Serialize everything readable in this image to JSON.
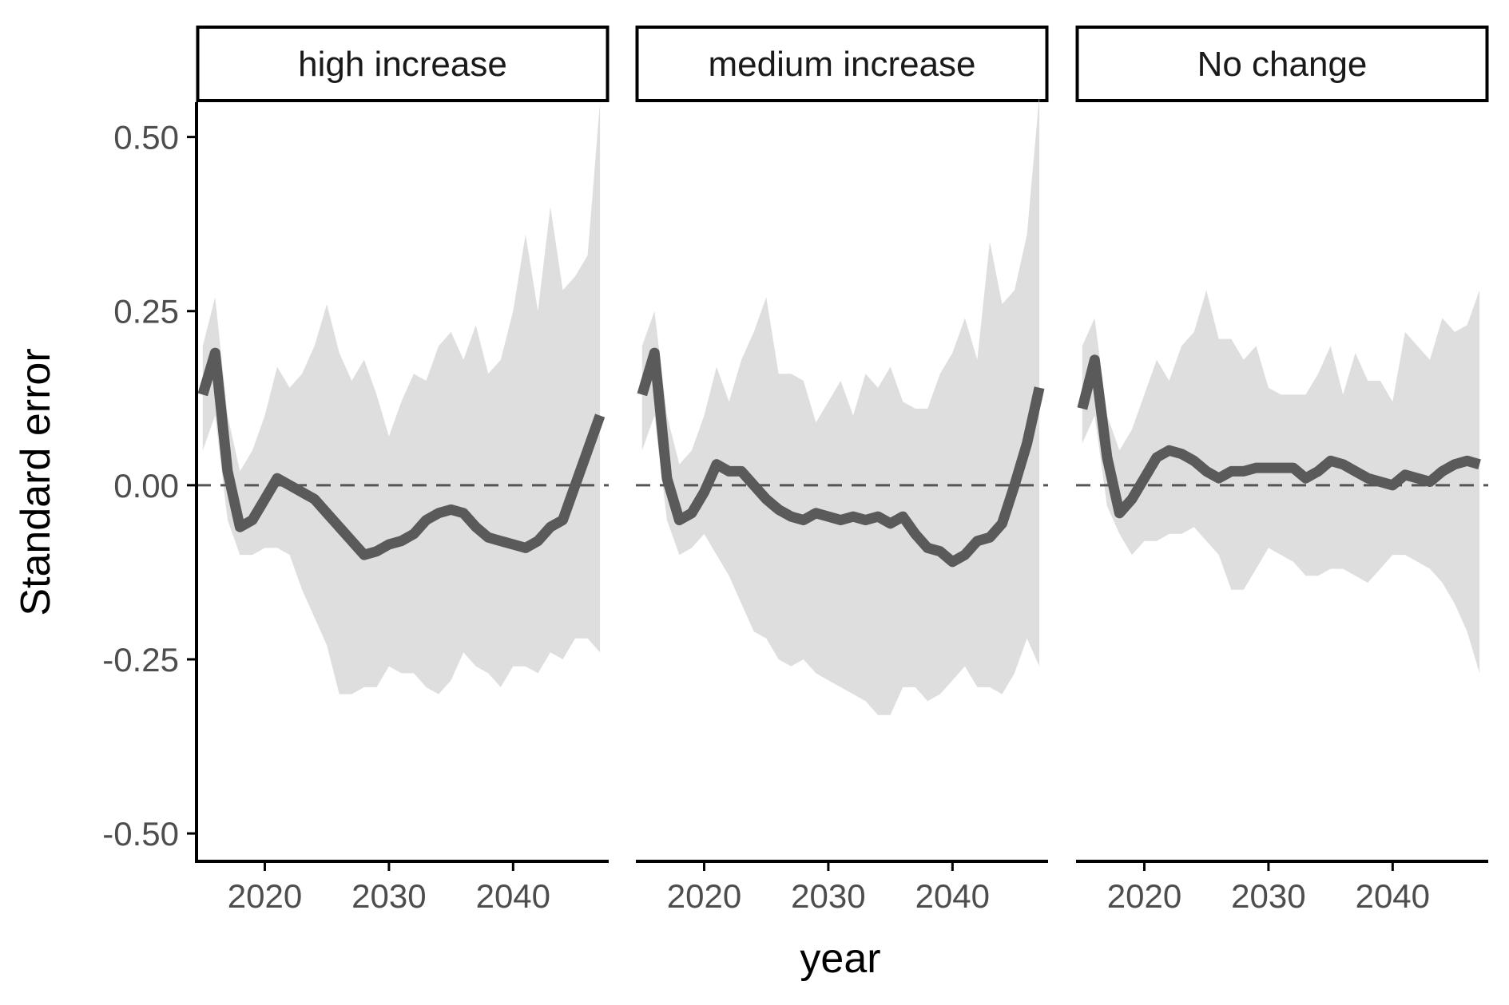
{
  "chart_data": {
    "type": "line",
    "xlabel": "year",
    "ylabel": "Standard error",
    "xlim": [
      2014.5,
      2047.7
    ],
    "ylim": [
      -0.54,
      0.55
    ],
    "x_ticks": [
      2020,
      2030,
      2040
    ],
    "x_tick_labels": [
      "2020",
      "2030",
      "2040"
    ],
    "y_ticks": [
      -0.5,
      -0.25,
      0,
      0.25,
      0.5
    ],
    "y_tick_labels": [
      "-0.50",
      "-0.25",
      "0.00",
      "0.25",
      "0.50"
    ],
    "reference_line": {
      "y": 0,
      "style": "dashed"
    },
    "grid": false,
    "colors": {
      "line": "#5a5a5a",
      "band": "#dedede",
      "axis": "#000000",
      "dashed": "#555555"
    },
    "panels": [
      {
        "label": "high increase",
        "x": [
          2015,
          2016,
          2017,
          2018,
          2019,
          2020,
          2021,
          2022,
          2023,
          2024,
          2025,
          2026,
          2027,
          2028,
          2029,
          2030,
          2031,
          2032,
          2033,
          2034,
          2035,
          2036,
          2037,
          2038,
          2039,
          2040,
          2041,
          2042,
          2043,
          2044,
          2045,
          2046,
          2047
        ],
        "mean": [
          0.13,
          0.19,
          0.02,
          -0.06,
          -0.05,
          -0.02,
          0.01,
          0.0,
          -0.01,
          -0.02,
          -0.04,
          -0.06,
          -0.08,
          -0.1,
          -0.095,
          -0.085,
          -0.08,
          -0.07,
          -0.05,
          -0.04,
          -0.035,
          -0.04,
          -0.06,
          -0.075,
          -0.08,
          -0.085,
          -0.09,
          -0.08,
          -0.06,
          -0.05,
          0.0,
          0.05,
          0.1
        ],
        "upper": [
          0.2,
          0.27,
          0.1,
          0.02,
          0.05,
          0.1,
          0.17,
          0.14,
          0.16,
          0.2,
          0.26,
          0.19,
          0.15,
          0.18,
          0.13,
          0.07,
          0.12,
          0.16,
          0.15,
          0.2,
          0.22,
          0.18,
          0.23,
          0.16,
          0.18,
          0.25,
          0.36,
          0.25,
          0.4,
          0.28,
          0.3,
          0.33,
          0.55
        ],
        "lower": [
          0.05,
          0.1,
          -0.05,
          -0.1,
          -0.1,
          -0.09,
          -0.09,
          -0.1,
          -0.15,
          -0.19,
          -0.23,
          -0.3,
          -0.3,
          -0.29,
          -0.29,
          -0.26,
          -0.27,
          -0.27,
          -0.29,
          -0.3,
          -0.28,
          -0.24,
          -0.26,
          -0.27,
          -0.29,
          -0.26,
          -0.26,
          -0.27,
          -0.24,
          -0.25,
          -0.22,
          -0.22,
          -0.24
        ]
      },
      {
        "label": "medium increase",
        "x": [
          2015,
          2016,
          2017,
          2018,
          2019,
          2020,
          2021,
          2022,
          2023,
          2024,
          2025,
          2026,
          2027,
          2028,
          2029,
          2030,
          2031,
          2032,
          2033,
          2034,
          2035,
          2036,
          2037,
          2038,
          2039,
          2040,
          2041,
          2042,
          2043,
          2044,
          2045,
          2046,
          2047
        ],
        "mean": [
          0.13,
          0.19,
          0.01,
          -0.05,
          -0.04,
          -0.01,
          0.03,
          0.02,
          0.02,
          0.0,
          -0.02,
          -0.035,
          -0.045,
          -0.05,
          -0.04,
          -0.045,
          -0.05,
          -0.045,
          -0.05,
          -0.045,
          -0.055,
          -0.045,
          -0.07,
          -0.09,
          -0.095,
          -0.11,
          -0.1,
          -0.08,
          -0.075,
          -0.055,
          0.0,
          0.06,
          0.14
        ],
        "upper": [
          0.2,
          0.25,
          0.1,
          0.03,
          0.05,
          0.1,
          0.17,
          0.12,
          0.18,
          0.22,
          0.27,
          0.16,
          0.16,
          0.15,
          0.09,
          0.12,
          0.15,
          0.1,
          0.16,
          0.14,
          0.17,
          0.12,
          0.11,
          0.11,
          0.16,
          0.19,
          0.24,
          0.18,
          0.35,
          0.26,
          0.28,
          0.36,
          0.56
        ],
        "lower": [
          0.05,
          0.1,
          -0.05,
          -0.1,
          -0.09,
          -0.07,
          -0.1,
          -0.13,
          -0.17,
          -0.21,
          -0.22,
          -0.25,
          -0.26,
          -0.25,
          -0.27,
          -0.28,
          -0.29,
          -0.3,
          -0.31,
          -0.33,
          -0.33,
          -0.29,
          -0.29,
          -0.31,
          -0.3,
          -0.28,
          -0.26,
          -0.29,
          -0.29,
          -0.3,
          -0.27,
          -0.22,
          -0.26
        ]
      },
      {
        "label": "No change",
        "x": [
          2015,
          2016,
          2017,
          2018,
          2019,
          2020,
          2021,
          2022,
          2023,
          2024,
          2025,
          2026,
          2027,
          2028,
          2029,
          2030,
          2031,
          2032,
          2033,
          2034,
          2035,
          2036,
          2037,
          2038,
          2039,
          2040,
          2041,
          2042,
          2043,
          2044,
          2045,
          2046,
          2047
        ],
        "mean": [
          0.11,
          0.18,
          0.04,
          -0.04,
          -0.02,
          0.01,
          0.04,
          0.05,
          0.045,
          0.035,
          0.02,
          0.01,
          0.02,
          0.02,
          0.025,
          0.025,
          0.025,
          0.025,
          0.01,
          0.02,
          0.035,
          0.03,
          0.02,
          0.01,
          0.005,
          0.0,
          0.015,
          0.01,
          0.005,
          0.02,
          0.03,
          0.035,
          0.03
        ],
        "upper": [
          0.2,
          0.24,
          0.1,
          0.05,
          0.08,
          0.13,
          0.18,
          0.15,
          0.2,
          0.22,
          0.28,
          0.21,
          0.21,
          0.18,
          0.2,
          0.14,
          0.13,
          0.13,
          0.13,
          0.16,
          0.2,
          0.13,
          0.19,
          0.15,
          0.15,
          0.12,
          0.22,
          0.2,
          0.18,
          0.24,
          0.22,
          0.23,
          0.28
        ],
        "lower": [
          0.06,
          0.1,
          -0.03,
          -0.07,
          -0.1,
          -0.08,
          -0.08,
          -0.07,
          -0.07,
          -0.06,
          -0.08,
          -0.1,
          -0.15,
          -0.15,
          -0.12,
          -0.09,
          -0.1,
          -0.11,
          -0.13,
          -0.13,
          -0.12,
          -0.12,
          -0.13,
          -0.14,
          -0.12,
          -0.1,
          -0.1,
          -0.11,
          -0.12,
          -0.14,
          -0.17,
          -0.21,
          -0.27
        ]
      }
    ]
  }
}
